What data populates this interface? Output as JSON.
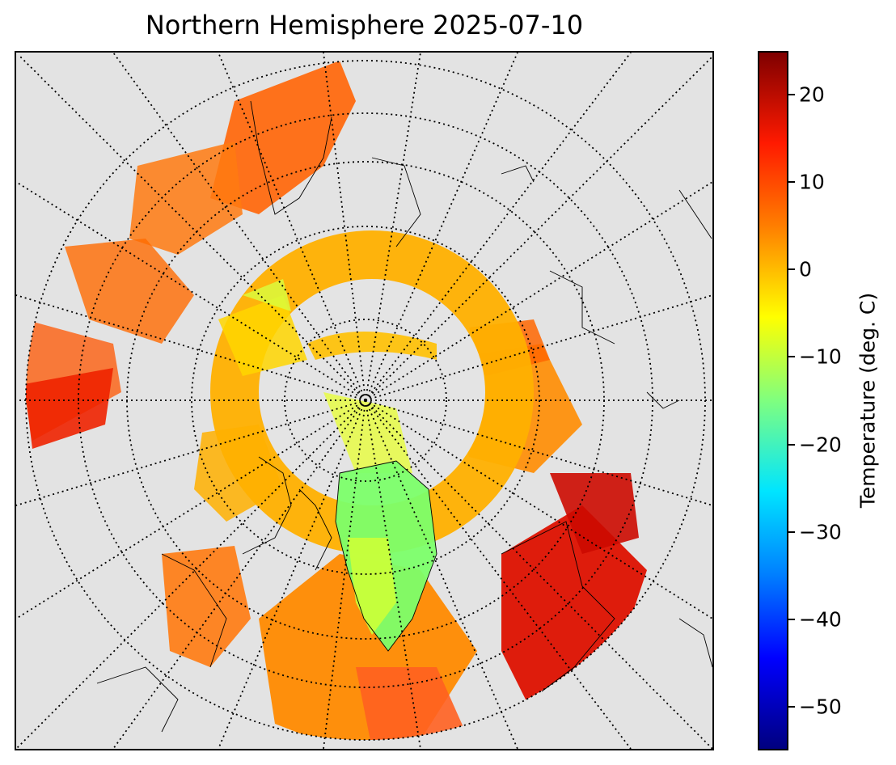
{
  "title": "Northern Hemisphere 2025-07-10",
  "map": {
    "projection": "north polar stereographic",
    "background_color": "#e3e3e3",
    "graticule": "dotted",
    "coastlines": "thin black"
  },
  "colorbar": {
    "label": "Temperature (deg. C)",
    "colormap": "jet",
    "range": [
      -55,
      25
    ],
    "ticks": [
      {
        "value": 20,
        "label": "20"
      },
      {
        "value": 10,
        "label": "10"
      },
      {
        "value": 0,
        "label": "0"
      },
      {
        "value": -10,
        "label": "−10"
      },
      {
        "value": -20,
        "label": "−20"
      },
      {
        "value": -30,
        "label": "−30"
      },
      {
        "value": -40,
        "label": "−40"
      },
      {
        "value": -50,
        "label": "−50"
      }
    ]
  }
}
